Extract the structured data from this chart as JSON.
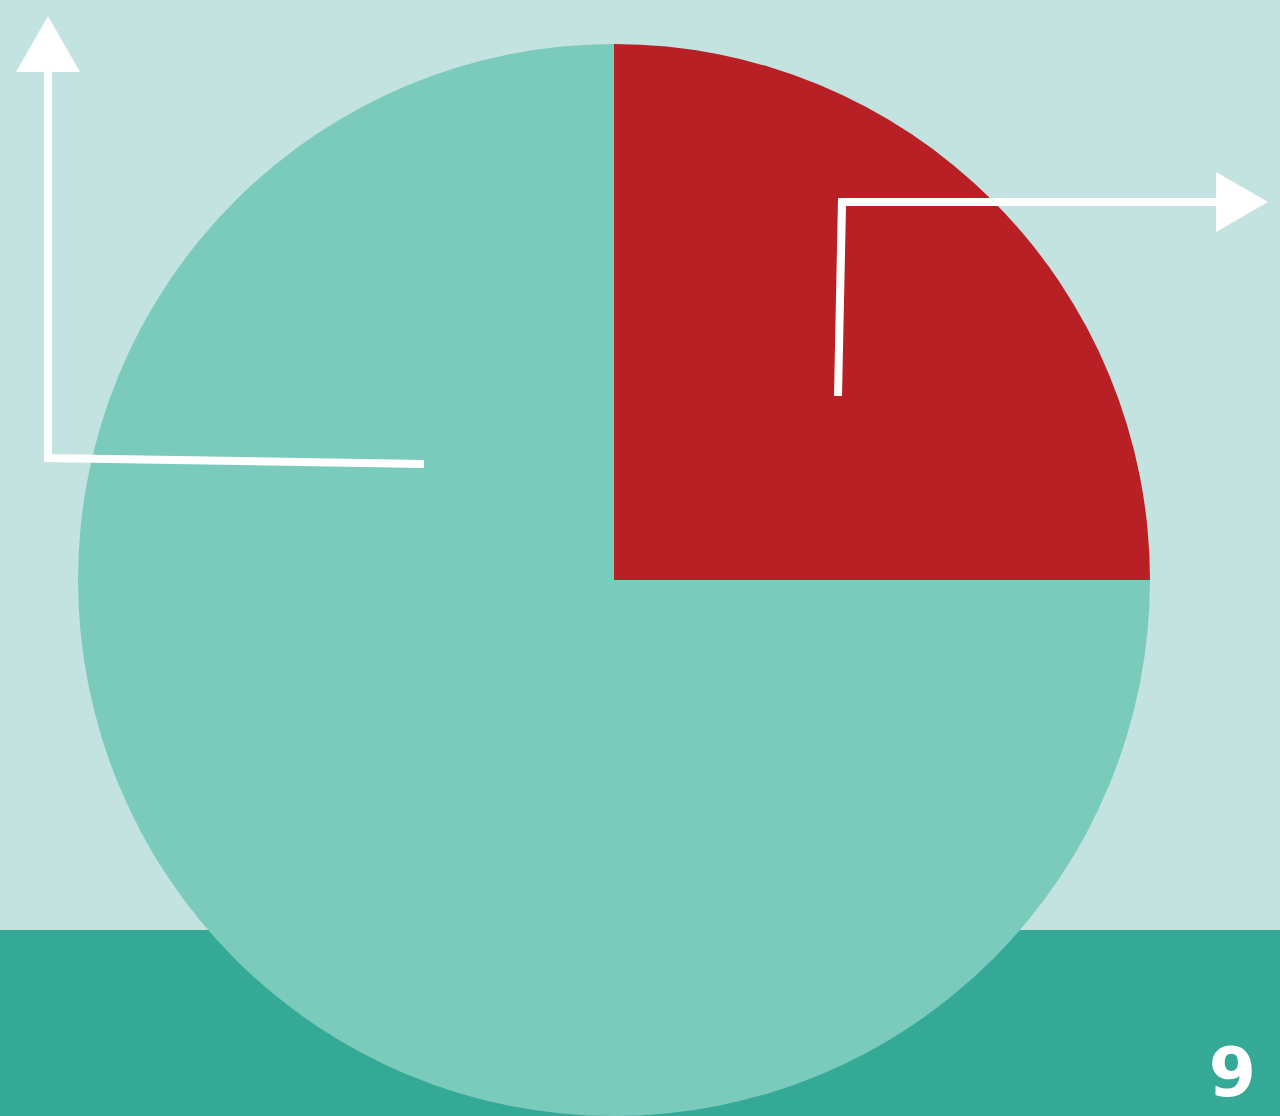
{
  "chart_data": {
    "type": "pie",
    "categories": [
      null,
      null
    ],
    "values": [
      25,
      75
    ],
    "colors": [
      "#b82025",
      "#7bcbbd"
    ],
    "annotations": [
      "9"
    ]
  }
}
